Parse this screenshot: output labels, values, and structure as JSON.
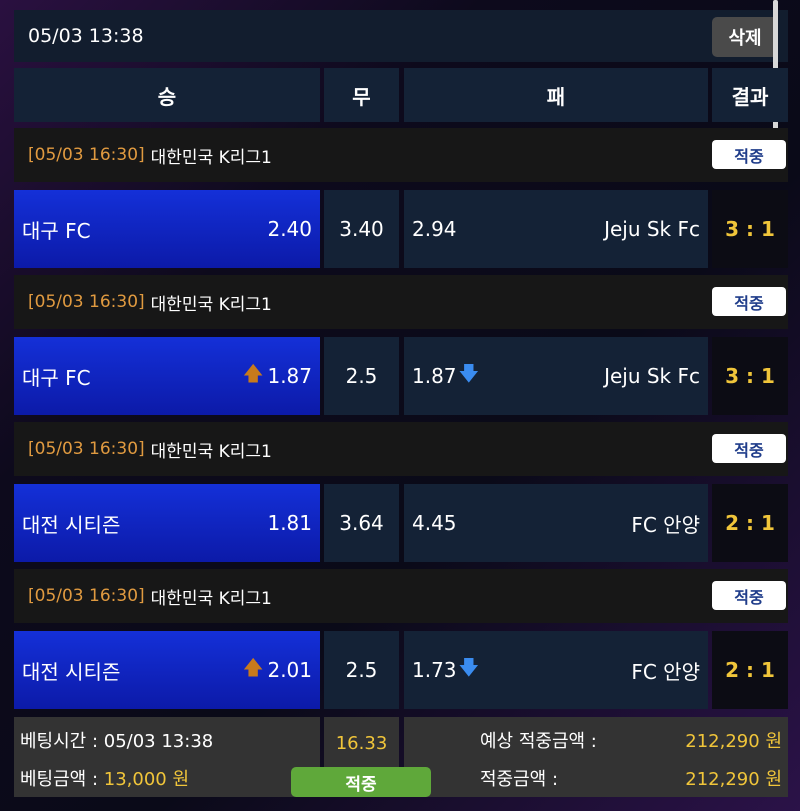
{
  "header": {
    "datetime": "05/03 13:38",
    "delete_label": "삭제"
  },
  "columns": {
    "win": "승",
    "draw": "무",
    "lose": "패",
    "result": "결과"
  },
  "matches": [
    {
      "time": "[05/03 16:30]",
      "league": "대한민국 K리그1",
      "status": "적중",
      "home": "대구 FC",
      "home_odds": "2.40",
      "home_arrow": "",
      "draw": "3.40",
      "away_odds": "2.94",
      "away_arrow": "",
      "away": "Jeju Sk Fc",
      "score": "3 : 1"
    },
    {
      "time": "[05/03 16:30]",
      "league": "대한민국 K리그1",
      "status": "적중",
      "home": "대구 FC",
      "home_odds": "1.87",
      "home_arrow": "up",
      "draw": "2.5",
      "away_odds": "1.87",
      "away_arrow": "down",
      "away": "Jeju Sk Fc",
      "score": "3 : 1"
    },
    {
      "time": "[05/03 16:30]",
      "league": "대한민국 K리그1",
      "status": "적중",
      "home": "대전 시티즌",
      "home_odds": "1.81",
      "home_arrow": "",
      "draw": "3.64",
      "away_odds": "4.45",
      "away_arrow": "",
      "away": "FC 안양",
      "score": "2 : 1"
    },
    {
      "time": "[05/03 16:30]",
      "league": "대한민국 K리그1",
      "status": "적중",
      "home": "대전 시티즌",
      "home_odds": "2.01",
      "home_arrow": "up",
      "draw": "2.5",
      "away_odds": "1.73",
      "away_arrow": "down",
      "away": "FC 안양",
      "score": "2 : 1"
    }
  ],
  "footer": {
    "bet_time_label": "베팅시간 : ",
    "bet_time": "05/03 13:38",
    "bet_amount_label": "베팅금액 : ",
    "bet_amount": "13,000 원",
    "total_odds": "16.33",
    "result": "적중",
    "expected_label": "예상 적중금액 :",
    "expected": "212,290 원",
    "won_label": "적중금액 :",
    "won": "212,290 원"
  }
}
